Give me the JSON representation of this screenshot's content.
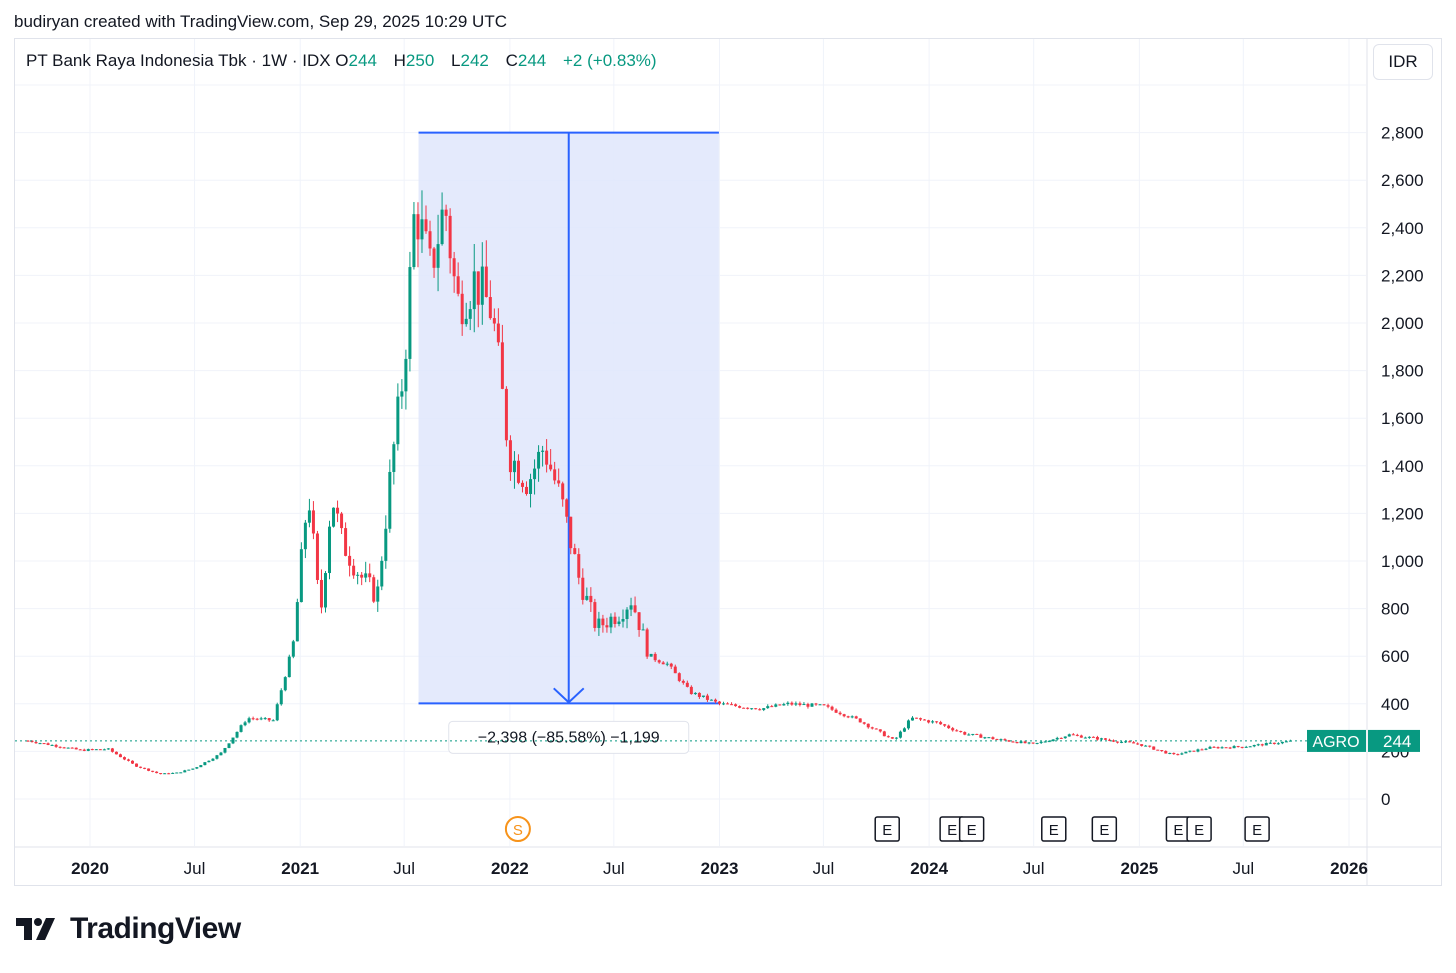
{
  "header": {
    "credit": "budiryan created with TradingView.com, Sep 29, 2025 10:29 UTC",
    "title": "PT Bank Raya Indonesia Tbk · 1W · IDX",
    "ohlc": [
      {
        "label": "O",
        "value": "244"
      },
      {
        "label": "H",
        "value": "250"
      },
      {
        "label": "L",
        "value": "242"
      },
      {
        "label": "C",
        "value": "244"
      }
    ],
    "change": "+2 (+0.83%)",
    "currency": "IDR"
  },
  "footer": {
    "brand": "TradingView"
  },
  "colors": {
    "up": "#089981",
    "down": "#f23645",
    "range_fill": "#dfe6fc",
    "range_line": "#2962ff",
    "price_line": "#089981",
    "event_orange": "#f7931a"
  },
  "chart_data": {
    "type": "candlestick",
    "timeframe": "1W",
    "symbol": "AGRO",
    "last_price": 244,
    "y_axis": {
      "ticks": [
        0,
        200,
        400,
        600,
        800,
        1000,
        1200,
        1400,
        1600,
        1800,
        2000,
        2200,
        2400,
        2600,
        2800
      ],
      "tick_labels": [
        "0",
        "200",
        "400",
        "600",
        "800",
        "1,000",
        "1,200",
        "1,400",
        "1,600",
        "1,800",
        "2,000",
        "2,200",
        "2,400",
        "2,600",
        "2,800"
      ],
      "range": [
        -50,
        3000
      ]
    },
    "x_axis": {
      "ticks": [
        {
          "date": "2020-01-01",
          "label": "2020",
          "bold": true
        },
        {
          "date": "2020-07-01",
          "label": "Jul",
          "bold": false
        },
        {
          "date": "2021-01-01",
          "label": "2021",
          "bold": true
        },
        {
          "date": "2021-07-01",
          "label": "Jul",
          "bold": false
        },
        {
          "date": "2022-01-01",
          "label": "2022",
          "bold": true
        },
        {
          "date": "2022-07-01",
          "label": "Jul",
          "bold": false
        },
        {
          "date": "2023-01-01",
          "label": "2023",
          "bold": true
        },
        {
          "date": "2023-07-01",
          "label": "Jul",
          "bold": false
        },
        {
          "date": "2024-01-01",
          "label": "2024",
          "bold": true
        },
        {
          "date": "2024-07-01",
          "label": "Jul",
          "bold": false
        },
        {
          "date": "2025-01-01",
          "label": "2025",
          "bold": true
        },
        {
          "date": "2025-07-01",
          "label": "Jul",
          "bold": false
        },
        {
          "date": "2026-01-01",
          "label": "2026",
          "bold": true
        }
      ]
    },
    "price_path": [
      [
        "2019-09-15",
        245
      ],
      [
        "2019-12-15",
        205
      ],
      [
        "2020-02-01",
        210
      ],
      [
        "2020-03-20",
        140
      ],
      [
        "2020-05-01",
        105
      ],
      [
        "2020-06-01",
        110
      ],
      [
        "2020-07-01",
        130
      ],
      [
        "2020-08-15",
        190
      ],
      [
        "2020-10-01",
        340
      ],
      [
        "2020-11-15",
        330
      ],
      [
        "2020-12-20",
        650
      ],
      [
        "2021-01-15",
        1300
      ],
      [
        "2021-02-05",
        760
      ],
      [
        "2021-02-25",
        1280
      ],
      [
        "2021-03-15",
        1080
      ],
      [
        "2021-04-15",
        940
      ],
      [
        "2021-05-15",
        850
      ],
      [
        "2021-06-10",
        1420
      ],
      [
        "2021-07-01",
        1820
      ],
      [
        "2021-07-20",
        2500
      ],
      [
        "2021-08-15",
        2220
      ],
      [
        "2021-09-10",
        2500
      ],
      [
        "2021-10-01",
        2080
      ],
      [
        "2021-11-01",
        2180
      ],
      [
        "2021-12-01",
        2050
      ],
      [
        "2021-12-31",
        1450
      ],
      [
        "2022-02-01",
        1330
      ],
      [
        "2022-03-01",
        1480
      ],
      [
        "2022-04-01",
        1250
      ],
      [
        "2022-05-01",
        930
      ],
      [
        "2022-06-01",
        720
      ],
      [
        "2022-07-10",
        780
      ],
      [
        "2022-08-01",
        840
      ],
      [
        "2022-09-01",
        600
      ],
      [
        "2022-10-01",
        570
      ],
      [
        "2022-11-10",
        450
      ],
      [
        "2022-12-31",
        400
      ],
      [
        "2023-02-01",
        390
      ],
      [
        "2023-03-15",
        380
      ],
      [
        "2023-05-01",
        400
      ],
      [
        "2023-07-01",
        390
      ],
      [
        "2023-09-01",
        330
      ],
      [
        "2023-11-01",
        245
      ],
      [
        "2023-12-01",
        340
      ],
      [
        "2024-01-15",
        320
      ],
      [
        "2024-03-01",
        275
      ],
      [
        "2024-05-01",
        250
      ],
      [
        "2024-07-01",
        230
      ],
      [
        "2024-09-01",
        270
      ],
      [
        "2024-11-01",
        250
      ],
      [
        "2025-01-01",
        230
      ],
      [
        "2025-03-01",
        185
      ],
      [
        "2025-05-01",
        215
      ],
      [
        "2025-07-01",
        220
      ],
      [
        "2025-09-27",
        244
      ]
    ],
    "measure_tool": {
      "start_date": "2021-07-26",
      "end_date": "2022-12-31",
      "top_price": 2800,
      "bottom_price": 402,
      "label": "−2,398 (−85.58%) −1,199"
    },
    "events": [
      {
        "type": "S",
        "date": "2022-01-15"
      },
      {
        "type": "E",
        "date": "2023-10-20"
      },
      {
        "type": "E",
        "date": "2024-02-10"
      },
      {
        "type": "E",
        "date": "2024-03-15"
      },
      {
        "type": "E",
        "date": "2024-08-05"
      },
      {
        "type": "E",
        "date": "2024-11-01"
      },
      {
        "type": "E",
        "date": "2025-03-10"
      },
      {
        "type": "E",
        "date": "2025-04-15"
      },
      {
        "type": "E",
        "date": "2025-07-25"
      }
    ],
    "price_tag": {
      "symbol": "AGRO",
      "value": "244"
    }
  }
}
